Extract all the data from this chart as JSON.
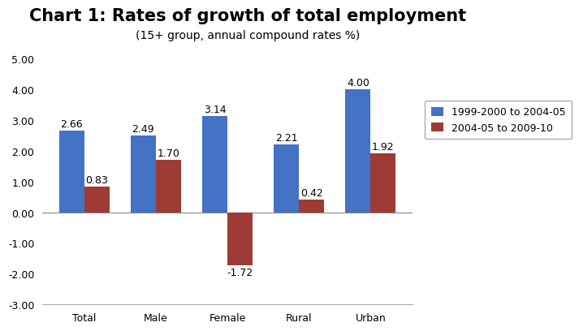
{
  "title": "Chart 1: Rates of growth of total employment",
  "subtitle": "(15+ group, annual compound rates %)",
  "categories": [
    "Total",
    "Male",
    "Female",
    "Rural",
    "Urban"
  ],
  "series": [
    {
      "label": "1999-2000 to 2004-05",
      "color": "#4472C4",
      "values": [
        2.66,
        2.49,
        3.14,
        2.21,
        4.0
      ]
    },
    {
      "label": "2004-05 to 2009-10",
      "color": "#9E3B35",
      "values": [
        0.83,
        1.7,
        -1.72,
        0.42,
        1.92
      ]
    }
  ],
  "ylim": [
    -3.0,
    5.0
  ],
  "yticks": [
    -3.0,
    -2.0,
    -1.0,
    0.0,
    1.0,
    2.0,
    3.0,
    4.0,
    5.0
  ],
  "bar_width": 0.35,
  "background_color": "#FFFFFF",
  "title_fontsize": 15,
  "subtitle_fontsize": 10,
  "tick_fontsize": 9,
  "label_fontsize": 9,
  "legend_fontsize": 9
}
